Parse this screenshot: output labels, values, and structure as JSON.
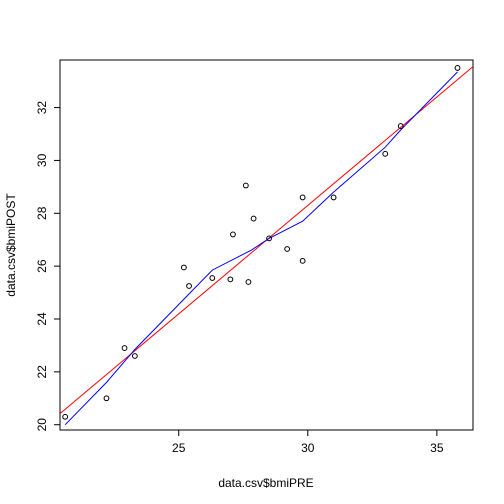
{
  "chart_data": {
    "type": "scatter",
    "title": "",
    "xlabel": "data.csv$bmiPRE",
    "ylabel": "data.csv$bmiPOST",
    "xlim": [
      20.4,
      36.4
    ],
    "ylim": [
      19.8,
      33.8
    ],
    "x_ticks": [
      25,
      30,
      35
    ],
    "y_ticks": [
      20,
      22,
      24,
      26,
      28,
      30,
      32
    ],
    "grid": false,
    "legend": "none",
    "points": [
      {
        "x": 20.6,
        "y": 20.3
      },
      {
        "x": 22.2,
        "y": 21.0
      },
      {
        "x": 22.9,
        "y": 22.9
      },
      {
        "x": 23.3,
        "y": 22.6
      },
      {
        "x": 25.2,
        "y": 25.95
      },
      {
        "x": 25.4,
        "y": 25.25
      },
      {
        "x": 26.3,
        "y": 25.55
      },
      {
        "x": 27.0,
        "y": 25.5
      },
      {
        "x": 27.1,
        "y": 27.2
      },
      {
        "x": 27.6,
        "y": 29.05
      },
      {
        "x": 27.7,
        "y": 25.4
      },
      {
        "x": 27.9,
        "y": 27.8
      },
      {
        "x": 28.5,
        "y": 27.05
      },
      {
        "x": 29.2,
        "y": 26.65
      },
      {
        "x": 29.8,
        "y": 28.6
      },
      {
        "x": 29.8,
        "y": 26.2
      },
      {
        "x": 31.0,
        "y": 28.6
      },
      {
        "x": 33.0,
        "y": 30.25
      },
      {
        "x": 33.6,
        "y": 31.3
      },
      {
        "x": 35.8,
        "y": 33.5
      }
    ],
    "series": [
      {
        "style": "regression-line",
        "color": "#ff0000",
        "values": [
          [
            20.4,
            20.42
          ],
          [
            36.4,
            33.55
          ]
        ]
      },
      {
        "style": "smooth-curve",
        "color": "#0000ff",
        "values": [
          [
            20.6,
            20.0
          ],
          [
            22.2,
            21.6
          ],
          [
            23.3,
            22.85
          ],
          [
            25.4,
            24.95
          ],
          [
            26.3,
            25.85
          ],
          [
            27.8,
            26.6
          ],
          [
            28.5,
            27.05
          ],
          [
            29.8,
            27.7
          ],
          [
            31.0,
            28.8
          ],
          [
            33.0,
            30.5
          ],
          [
            33.6,
            31.15
          ],
          [
            35.8,
            33.35
          ]
        ]
      }
    ],
    "colors": {
      "points": "#000000",
      "frame": "#000000"
    }
  }
}
